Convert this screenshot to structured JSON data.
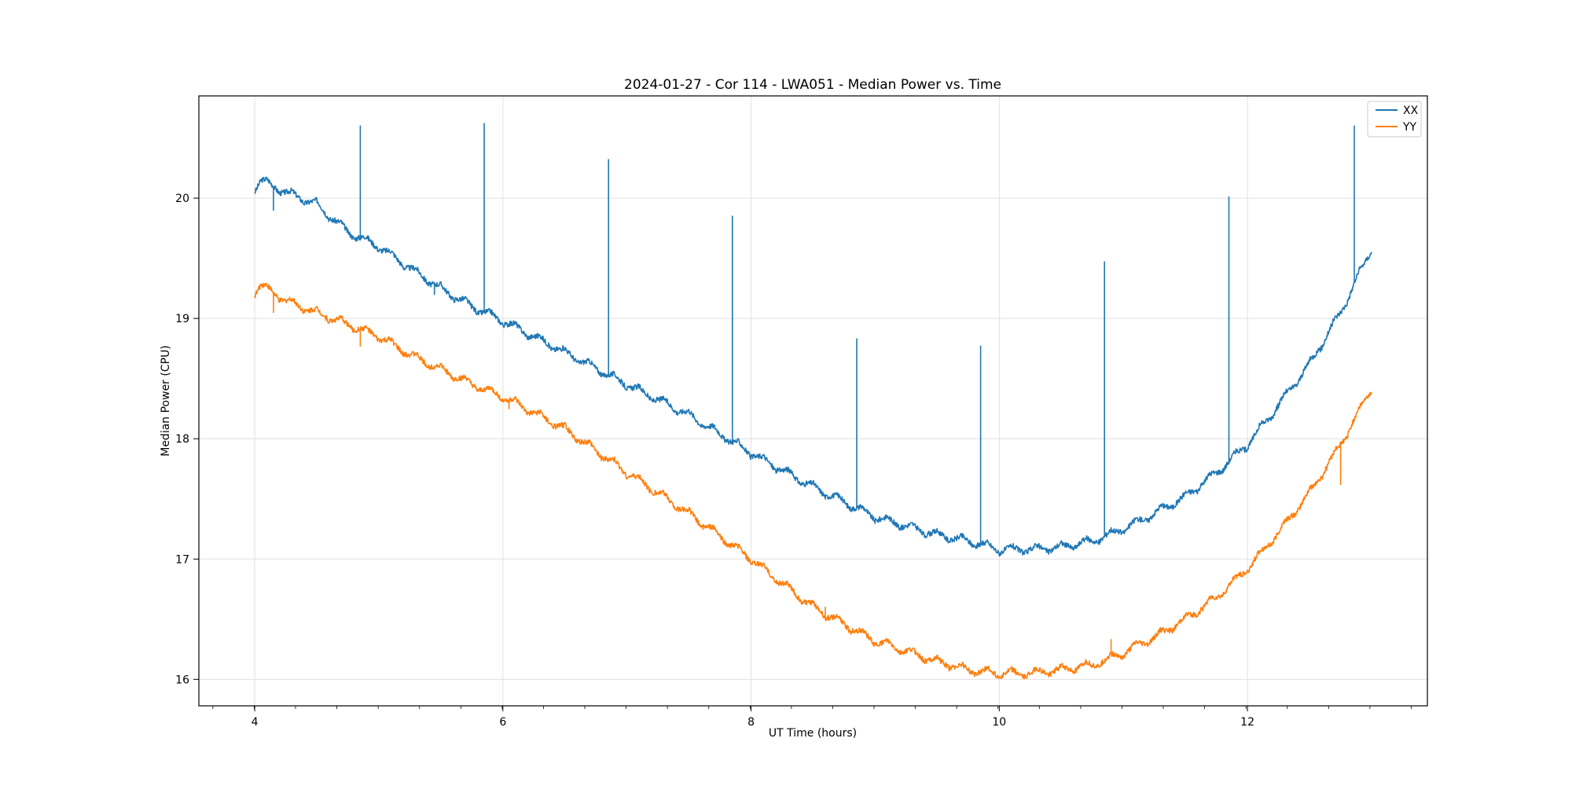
{
  "chart_data": {
    "type": "line",
    "title": "2024-01-27 - Cor 114 - LWA051 - Median Power vs. Time",
    "xlabel": "UT Time (hours)",
    "ylabel": "Median Power (CPU)",
    "xlim": [
      3.55,
      13.45
    ],
    "ylim": [
      15.78,
      20.85
    ],
    "xticks": [
      4,
      6,
      8,
      10,
      12
    ],
    "yticks": [
      16,
      17,
      18,
      19,
      20
    ],
    "x_minor_step": 0.333,
    "grid": true,
    "legend_position": "upper right",
    "x_range": [
      4.0,
      13.0
    ],
    "oscillation_period_hours": 0.2,
    "series": [
      {
        "name": "XX",
        "color": "#1f77b4",
        "x": [
          4.0,
          4.05,
          4.25,
          4.5,
          4.75,
          5.0,
          5.25,
          5.5,
          5.75,
          6.0,
          6.5,
          7.0,
          7.5,
          8.0,
          8.5,
          9.0,
          9.5,
          9.75,
          10.0,
          10.25,
          10.5,
          10.75,
          11.0,
          11.25,
          11.5,
          11.75,
          12.0,
          12.25,
          12.5,
          12.75,
          13.0
        ],
        "values": [
          20.08,
          20.15,
          20.05,
          19.95,
          19.72,
          19.6,
          19.42,
          19.25,
          19.1,
          18.98,
          18.72,
          18.45,
          18.2,
          17.88,
          17.6,
          17.35,
          17.2,
          17.15,
          17.08,
          17.08,
          17.1,
          17.15,
          17.25,
          17.38,
          17.52,
          17.72,
          17.95,
          18.28,
          18.62,
          19.05,
          19.58
        ],
        "spikes": [
          {
            "x": 4.15,
            "y": 19.9
          },
          {
            "x": 4.85,
            "y": 20.6
          },
          {
            "x": 5.45,
            "y": 19.2
          },
          {
            "x": 5.85,
            "y": 20.62
          },
          {
            "x": 6.85,
            "y": 20.32
          },
          {
            "x": 7.85,
            "y": 19.85
          },
          {
            "x": 8.85,
            "y": 18.83
          },
          {
            "x": 9.85,
            "y": 18.77
          },
          {
            "x": 10.85,
            "y": 19.47
          },
          {
            "x": 11.85,
            "y": 20.01
          },
          {
            "x": 12.86,
            "y": 20.6
          }
        ]
      },
      {
        "name": "YY",
        "color": "#ff7f0e",
        "x": [
          4.0,
          4.05,
          4.25,
          4.5,
          4.75,
          5.0,
          5.25,
          5.5,
          5.75,
          6.0,
          6.5,
          7.0,
          7.5,
          8.0,
          8.5,
          9.0,
          9.5,
          9.75,
          10.0,
          10.25,
          10.5,
          10.75,
          11.0,
          11.25,
          11.5,
          11.75,
          12.0,
          12.25,
          12.5,
          12.75,
          13.0
        ],
        "values": [
          19.22,
          19.28,
          19.15,
          19.05,
          18.95,
          18.85,
          18.7,
          18.58,
          18.45,
          18.35,
          18.08,
          17.72,
          17.38,
          17.0,
          16.6,
          16.32,
          16.15,
          16.08,
          16.05,
          16.05,
          16.08,
          16.12,
          16.22,
          16.35,
          16.5,
          16.68,
          16.92,
          17.22,
          17.55,
          17.95,
          18.42
        ],
        "spikes": [
          {
            "x": 4.15,
            "y": 19.05
          },
          {
            "x": 4.85,
            "y": 18.77
          },
          {
            "x": 6.05,
            "y": 18.25
          },
          {
            "x": 8.6,
            "y": 16.6
          },
          {
            "x": 10.9,
            "y": 16.33
          },
          {
            "x": 12.75,
            "y": 17.62
          }
        ]
      }
    ]
  }
}
